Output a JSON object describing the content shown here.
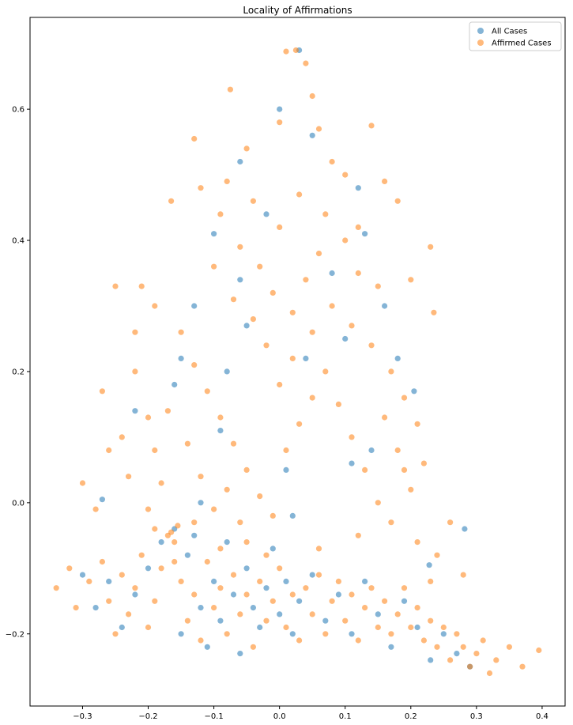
{
  "chart_data": {
    "type": "scatter",
    "title": "Locality of Affirmations",
    "xlabel": "",
    "ylabel": "",
    "xlim": [
      -0.38,
      0.435
    ],
    "ylim": [
      -0.31,
      0.74
    ],
    "x_ticks": [
      -0.3,
      -0.2,
      -0.1,
      0.0,
      0.1,
      0.2,
      0.3,
      0.4
    ],
    "x_tick_labels": [
      "−0.3",
      "−0.2",
      "−0.1",
      "0.0",
      "0.1",
      "0.2",
      "0.3",
      "0.4"
    ],
    "y_ticks": [
      -0.2,
      0.0,
      0.2,
      0.4,
      0.6
    ],
    "y_tick_labels": [
      "−0.2",
      "0.0",
      "0.2",
      "0.4",
      "0.6"
    ],
    "grid": false,
    "legend_position": "top-right",
    "point_alpha": 0.55,
    "series": [
      {
        "name": "All Cases",
        "color": "#1f77b4",
        "points": [
          [
            -0.3,
            -0.11
          ],
          [
            -0.28,
            -0.16
          ],
          [
            -0.26,
            -0.12
          ],
          [
            -0.24,
            -0.19
          ],
          [
            -0.22,
            -0.14
          ],
          [
            -0.2,
            -0.1
          ],
          [
            -0.18,
            -0.06
          ],
          [
            -0.16,
            -0.04
          ],
          [
            -0.15,
            -0.2
          ],
          [
            -0.14,
            -0.08
          ],
          [
            -0.13,
            -0.05
          ],
          [
            -0.12,
            -0.16
          ],
          [
            -0.11,
            -0.22
          ],
          [
            -0.1,
            -0.12
          ],
          [
            -0.09,
            -0.18
          ],
          [
            -0.08,
            -0.06
          ],
          [
            -0.07,
            -0.14
          ],
          [
            -0.06,
            -0.23
          ],
          [
            -0.05,
            -0.1
          ],
          [
            -0.04,
            -0.16
          ],
          [
            -0.03,
            -0.19
          ],
          [
            -0.02,
            -0.13
          ],
          [
            -0.01,
            -0.07
          ],
          [
            0.0,
            -0.17
          ],
          [
            0.01,
            -0.12
          ],
          [
            0.02,
            -0.2
          ],
          [
            0.03,
            -0.15
          ],
          [
            0.05,
            -0.11
          ],
          [
            0.07,
            -0.18
          ],
          [
            0.09,
            -0.14
          ],
          [
            0.11,
            -0.2
          ],
          [
            0.13,
            -0.12
          ],
          [
            0.15,
            -0.17
          ],
          [
            0.17,
            -0.22
          ],
          [
            0.19,
            -0.15
          ],
          [
            0.21,
            -0.19
          ],
          [
            0.23,
            -0.24
          ],
          [
            0.25,
            -0.2
          ],
          [
            0.27,
            -0.23
          ],
          [
            0.29,
            -0.25
          ],
          [
            0.282,
            -0.04
          ],
          [
            0.228,
            -0.095
          ],
          [
            0.205,
            0.17
          ],
          [
            0.14,
            0.08
          ],
          [
            0.16,
            0.3
          ],
          [
            0.13,
            0.41
          ],
          [
            0.12,
            0.48
          ],
          [
            0.05,
            0.56
          ],
          [
            0.03,
            0.69
          ],
          [
            0.0,
            0.6
          ],
          [
            -0.06,
            0.52
          ],
          [
            -0.02,
            0.44
          ],
          [
            -0.1,
            0.41
          ],
          [
            -0.13,
            0.3
          ],
          [
            -0.15,
            0.22
          ],
          [
            -0.16,
            0.18
          ],
          [
            -0.22,
            0.14
          ],
          [
            -0.27,
            0.005
          ],
          [
            -0.09,
            0.11
          ],
          [
            -0.05,
            0.27
          ],
          [
            0.01,
            0.05
          ],
          [
            0.04,
            0.22
          ],
          [
            0.08,
            0.35
          ],
          [
            0.1,
            0.25
          ],
          [
            0.18,
            0.22
          ],
          [
            0.11,
            0.06
          ],
          [
            -0.06,
            0.34
          ],
          [
            -0.08,
            0.2
          ],
          [
            0.02,
            -0.02
          ],
          [
            -0.12,
            0.0
          ]
        ]
      },
      {
        "name": "Affirmed Cases",
        "color": "#ff7f0e",
        "points": [
          [
            -0.34,
            -0.13
          ],
          [
            -0.32,
            -0.1
          ],
          [
            -0.31,
            -0.16
          ],
          [
            -0.29,
            -0.12
          ],
          [
            -0.27,
            -0.09
          ],
          [
            -0.26,
            -0.15
          ],
          [
            -0.25,
            -0.2
          ],
          [
            -0.24,
            -0.11
          ],
          [
            -0.23,
            -0.17
          ],
          [
            -0.22,
            -0.13
          ],
          [
            -0.21,
            -0.08
          ],
          [
            -0.2,
            -0.19
          ],
          [
            -0.19,
            -0.15
          ],
          [
            -0.18,
            -0.1
          ],
          [
            -0.17,
            -0.05
          ],
          [
            -0.165,
            -0.045
          ],
          [
            -0.16,
            -0.06
          ],
          [
            -0.155,
            -0.035
          ],
          [
            -0.15,
            -0.12
          ],
          [
            -0.14,
            -0.18
          ],
          [
            -0.13,
            -0.14
          ],
          [
            -0.12,
            -0.21
          ],
          [
            -0.11,
            -0.09
          ],
          [
            -0.1,
            -0.16
          ],
          [
            -0.09,
            -0.13
          ],
          [
            -0.08,
            -0.2
          ],
          [
            -0.07,
            -0.11
          ],
          [
            -0.06,
            -0.17
          ],
          [
            -0.05,
            -0.14
          ],
          [
            -0.04,
            -0.22
          ],
          [
            -0.03,
            -0.12
          ],
          [
            -0.02,
            -0.18
          ],
          [
            -0.01,
            -0.15
          ],
          [
            0.0,
            -0.1
          ],
          [
            0.01,
            -0.19
          ],
          [
            0.02,
            -0.14
          ],
          [
            0.03,
            -0.21
          ],
          [
            0.04,
            -0.13
          ],
          [
            0.05,
            -0.17
          ],
          [
            0.06,
            -0.11
          ],
          [
            0.07,
            -0.2
          ],
          [
            0.08,
            -0.15
          ],
          [
            0.09,
            -0.12
          ],
          [
            0.1,
            -0.18
          ],
          [
            0.11,
            -0.14
          ],
          [
            0.12,
            -0.21
          ],
          [
            0.13,
            -0.16
          ],
          [
            0.14,
            -0.13
          ],
          [
            0.15,
            -0.19
          ],
          [
            0.16,
            -0.15
          ],
          [
            0.17,
            -0.2
          ],
          [
            0.18,
            -0.17
          ],
          [
            0.19,
            -0.13
          ],
          [
            0.2,
            -0.19
          ],
          [
            0.21,
            -0.16
          ],
          [
            0.22,
            -0.21
          ],
          [
            0.23,
            -0.18
          ],
          [
            0.24,
            -0.22
          ],
          [
            0.25,
            -0.19
          ],
          [
            0.26,
            -0.24
          ],
          [
            0.27,
            -0.2
          ],
          [
            0.28,
            -0.22
          ],
          [
            0.29,
            -0.25
          ],
          [
            0.3,
            -0.23
          ],
          [
            0.31,
            -0.21
          ],
          [
            0.32,
            -0.26
          ],
          [
            0.33,
            -0.24
          ],
          [
            0.35,
            -0.22
          ],
          [
            0.37,
            -0.25
          ],
          [
            0.395,
            -0.225
          ],
          [
            0.025,
            0.69
          ],
          [
            0.01,
            0.688
          ],
          [
            0.04,
            0.67
          ],
          [
            0.05,
            0.62
          ],
          [
            -0.075,
            0.63
          ],
          [
            0.06,
            0.57
          ],
          [
            0.0,
            0.58
          ],
          [
            -0.05,
            0.54
          ],
          [
            -0.13,
            0.555
          ],
          [
            -0.165,
            0.46
          ],
          [
            0.14,
            0.575
          ],
          [
            0.16,
            0.49
          ],
          [
            0.18,
            0.46
          ],
          [
            0.23,
            0.39
          ],
          [
            0.235,
            0.29
          ],
          [
            0.2,
            0.34
          ],
          [
            0.15,
            0.33
          ],
          [
            -0.25,
            0.33
          ],
          [
            -0.21,
            0.33
          ],
          [
            -0.19,
            0.3
          ],
          [
            -0.22,
            0.26
          ],
          [
            -0.22,
            0.2
          ],
          [
            -0.2,
            0.13
          ],
          [
            -0.24,
            0.1
          ],
          [
            -0.27,
            0.17
          ],
          [
            -0.26,
            0.08
          ],
          [
            -0.3,
            0.03
          ],
          [
            -0.28,
            -0.01
          ],
          [
            -0.12,
            0.48
          ],
          [
            -0.09,
            0.44
          ],
          [
            -0.06,
            0.39
          ],
          [
            -0.03,
            0.36
          ],
          [
            0.0,
            0.42
          ],
          [
            0.03,
            0.47
          ],
          [
            0.07,
            0.44
          ],
          [
            0.1,
            0.4
          ],
          [
            0.12,
            0.35
          ],
          [
            -0.1,
            0.36
          ],
          [
            -0.07,
            0.31
          ],
          [
            -0.04,
            0.28
          ],
          [
            -0.01,
            0.32
          ],
          [
            0.02,
            0.29
          ],
          [
            0.05,
            0.26
          ],
          [
            0.08,
            0.3
          ],
          [
            0.11,
            0.27
          ],
          [
            0.14,
            0.24
          ],
          [
            0.17,
            0.2
          ],
          [
            0.19,
            0.16
          ],
          [
            0.21,
            0.12
          ],
          [
            0.22,
            0.06
          ],
          [
            0.2,
            0.02
          ],
          [
            -0.15,
            0.26
          ],
          [
            -0.13,
            0.21
          ],
          [
            -0.11,
            0.17
          ],
          [
            -0.09,
            0.13
          ],
          [
            -0.07,
            0.09
          ],
          [
            -0.05,
            0.05
          ],
          [
            -0.03,
            0.01
          ],
          [
            -0.01,
            -0.02
          ],
          [
            0.01,
            0.08
          ],
          [
            0.03,
            0.12
          ],
          [
            0.05,
            0.16
          ],
          [
            0.07,
            0.2
          ],
          [
            0.09,
            0.15
          ],
          [
            0.11,
            0.1
          ],
          [
            0.13,
            0.05
          ],
          [
            0.15,
            0.0
          ],
          [
            0.17,
            -0.03
          ],
          [
            0.18,
            0.08
          ],
          [
            -0.17,
            0.14
          ],
          [
            -0.19,
            0.08
          ],
          [
            -0.18,
            0.03
          ],
          [
            -0.2,
            -0.01
          ],
          [
            -0.23,
            0.04
          ],
          [
            -0.14,
            0.09
          ],
          [
            -0.12,
            0.04
          ],
          [
            -0.1,
            -0.01
          ],
          [
            -0.08,
            0.02
          ],
          [
            -0.06,
            -0.03
          ],
          [
            0.0,
            0.18
          ],
          [
            0.02,
            0.22
          ],
          [
            -0.02,
            0.24
          ],
          [
            0.04,
            0.34
          ],
          [
            0.06,
            0.38
          ],
          [
            -0.04,
            0.46
          ],
          [
            0.08,
            0.52
          ],
          [
            0.1,
            0.5
          ],
          [
            -0.08,
            0.49
          ],
          [
            0.12,
            0.42
          ],
          [
            0.16,
            0.13
          ],
          [
            0.19,
            0.05
          ],
          [
            0.21,
            -0.06
          ],
          [
            0.24,
            -0.08
          ],
          [
            0.26,
            -0.03
          ],
          [
            0.28,
            -0.11
          ],
          [
            0.23,
            -0.12
          ],
          [
            0.12,
            -0.05
          ],
          [
            0.06,
            -0.07
          ],
          [
            -0.02,
            -0.08
          ],
          [
            -0.05,
            -0.06
          ],
          [
            -0.09,
            -0.07
          ],
          [
            -0.13,
            -0.03
          ],
          [
            -0.16,
            -0.09
          ],
          [
            -0.19,
            -0.04
          ]
        ]
      }
    ]
  }
}
